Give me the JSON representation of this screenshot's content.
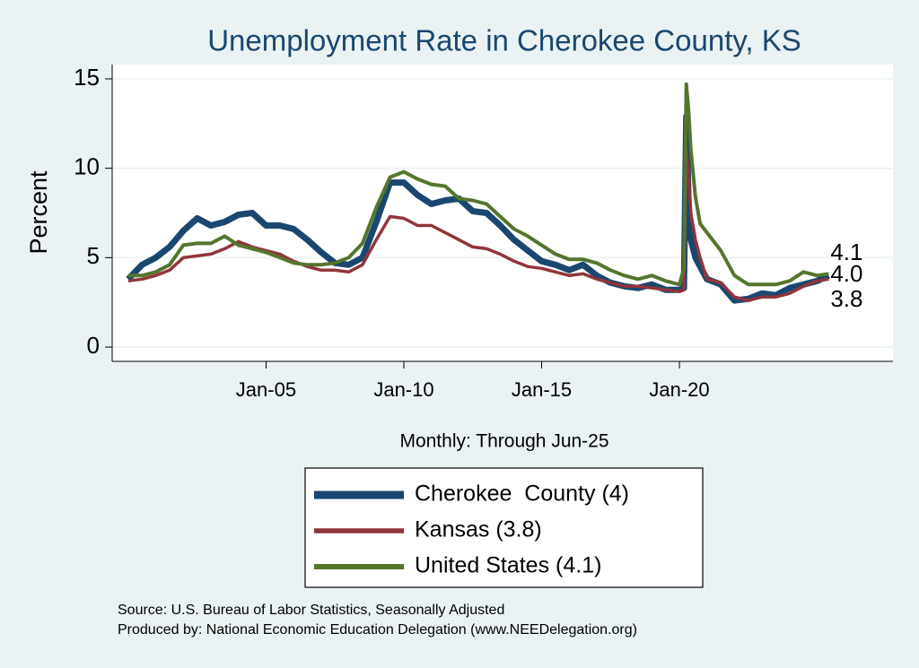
{
  "chart_data": {
    "type": "line",
    "title": "Unemployment Rate in Cherokee  County, KS",
    "y_label": "Percent",
    "x_label": "Monthly: Through Jun-25",
    "notes": [
      "Source: U.S. Bureau of Labor Statistics, Seasonally Adjusted",
      "Produced by: National Economic Education Delegation (www.NEEDelegation.org)"
    ],
    "x": [
      "2000-01",
      "2000-07",
      "2001-01",
      "2001-07",
      "2002-01",
      "2002-07",
      "2003-01",
      "2003-07",
      "2004-01",
      "2004-07",
      "2005-01",
      "2005-07",
      "2006-01",
      "2006-07",
      "2007-01",
      "2007-07",
      "2008-01",
      "2008-07",
      "2009-01",
      "2009-07",
      "2010-01",
      "2010-07",
      "2011-01",
      "2011-07",
      "2012-01",
      "2012-07",
      "2013-01",
      "2013-07",
      "2014-01",
      "2014-07",
      "2015-01",
      "2015-07",
      "2016-01",
      "2016-07",
      "2017-01",
      "2017-07",
      "2018-01",
      "2018-07",
      "2019-01",
      "2019-07",
      "2020-01",
      "2020-03",
      "2020-04",
      "2020-05",
      "2020-06",
      "2020-08",
      "2020-10",
      "2021-01",
      "2021-07",
      "2022-01",
      "2022-07",
      "2023-01",
      "2023-07",
      "2024-01",
      "2024-07",
      "2025-01",
      "2025-06"
    ],
    "series": [
      {
        "name": "Cherokee  County (4)",
        "color": "#1a476f",
        "width": 7,
        "end_label": "4.0",
        "values": [
          3.8,
          4.6,
          5.0,
          5.6,
          6.5,
          7.2,
          6.8,
          7.0,
          7.4,
          7.5,
          6.8,
          6.8,
          6.6,
          6.0,
          5.3,
          4.7,
          4.6,
          5.0,
          7.0,
          9.2,
          9.2,
          8.5,
          8.0,
          8.2,
          8.3,
          7.6,
          7.5,
          6.8,
          6.0,
          5.4,
          4.8,
          4.6,
          4.3,
          4.6,
          4.0,
          3.6,
          3.4,
          3.3,
          3.5,
          3.2,
          3.2,
          3.3,
          12.9,
          8.0,
          6.0,
          5.0,
          4.5,
          3.8,
          3.5,
          2.6,
          2.7,
          3.0,
          2.9,
          3.3,
          3.5,
          3.7,
          4.0
        ]
      },
      {
        "name": "Kansas (3.8)",
        "color": "#90353b",
        "width": 3.5,
        "end_label": "3.8",
        "values": [
          3.7,
          3.8,
          4.0,
          4.3,
          5.0,
          5.1,
          5.2,
          5.5,
          5.9,
          5.6,
          5.4,
          5.2,
          4.8,
          4.5,
          4.3,
          4.3,
          4.2,
          4.6,
          6.0,
          7.3,
          7.2,
          6.8,
          6.8,
          6.4,
          6.0,
          5.6,
          5.5,
          5.2,
          4.8,
          4.5,
          4.4,
          4.2,
          4.0,
          4.1,
          3.8,
          3.6,
          3.4,
          3.4,
          3.3,
          3.2,
          3.1,
          3.2,
          11.0,
          9.5,
          7.5,
          6.0,
          5.0,
          3.8,
          3.6,
          2.8,
          2.6,
          2.8,
          2.8,
          3.0,
          3.4,
          3.7,
          3.8
        ]
      },
      {
        "name": "United States (4.1)",
        "color": "#55752f",
        "width": 4,
        "end_label": "4.1",
        "values": [
          4.0,
          4.0,
          4.2,
          4.6,
          5.7,
          5.8,
          5.8,
          6.2,
          5.7,
          5.5,
          5.3,
          5.0,
          4.7,
          4.6,
          4.6,
          4.7,
          5.0,
          5.8,
          7.8,
          9.5,
          9.8,
          9.4,
          9.1,
          9.0,
          8.3,
          8.2,
          8.0,
          7.3,
          6.6,
          6.2,
          5.7,
          5.2,
          4.9,
          4.9,
          4.7,
          4.3,
          4.0,
          3.8,
          4.0,
          3.7,
          3.5,
          4.4,
          14.7,
          13.2,
          11.0,
          8.4,
          6.9,
          6.4,
          5.4,
          4.0,
          3.5,
          3.5,
          3.5,
          3.7,
          4.2,
          4.0,
          4.1
        ]
      }
    ],
    "xlim": [
      "1999-06",
      "2027-10"
    ],
    "xticks": [
      {
        "value": "2005-01",
        "label": "Jan-05"
      },
      {
        "value": "2010-01",
        "label": "Jan-10"
      },
      {
        "value": "2015-01",
        "label": "Jan-15"
      },
      {
        "value": "2020-01",
        "label": "Jan-20"
      }
    ],
    "ylim": [
      -0.8,
      15.8
    ],
    "yticks": [
      0,
      5,
      10,
      15
    ],
    "grid": true,
    "legend": "bottom"
  }
}
